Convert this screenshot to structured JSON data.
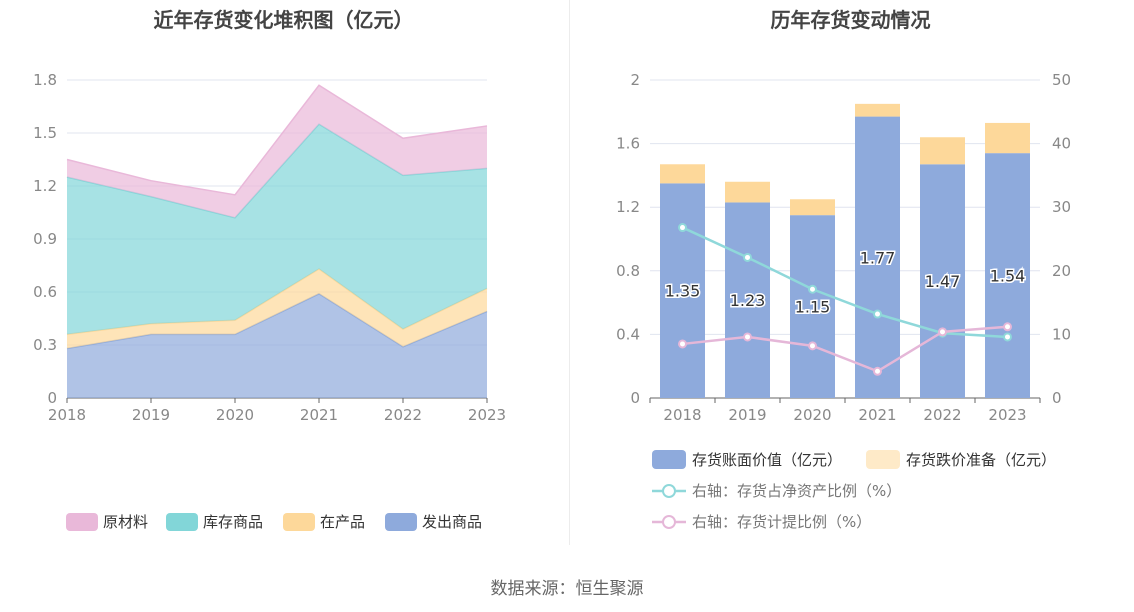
{
  "source": "数据来源：恒生聚源",
  "chart_data": [
    {
      "type": "area",
      "stacked": true,
      "title": "近年存货变化堆积图（亿元）",
      "x": [
        "2018",
        "2019",
        "2020",
        "2021",
        "2022",
        "2023"
      ],
      "ylim": [
        0,
        1.8
      ],
      "yticks": [
        0,
        0.3,
        0.6,
        0.9,
        1.2,
        1.5,
        1.8
      ],
      "ytick_labels": [
        "0",
        "0.3",
        "0.6",
        "0.9",
        "1.2",
        "1.5",
        "1.8"
      ],
      "grid": true,
      "legend_position": "bottom",
      "series": [
        {
          "name": "发出商品",
          "color": "#8eaadc",
          "values": [
            0.28,
            0.36,
            0.36,
            0.59,
            0.29,
            0.49
          ]
        },
        {
          "name": "在产品",
          "color": "#fdd89a",
          "values": [
            0.08,
            0.06,
            0.08,
            0.14,
            0.1,
            0.13
          ]
        },
        {
          "name": "库存商品",
          "color": "#82d6d8",
          "values": [
            0.89,
            0.72,
            0.58,
            0.82,
            0.87,
            0.68
          ]
        },
        {
          "name": "原材料",
          "color": "#e9b8d9",
          "values": [
            0.1,
            0.09,
            0.13,
            0.22,
            0.21,
            0.24
          ]
        }
      ],
      "legend_order": [
        "原材料",
        "库存商品",
        "在产品",
        "发出商品"
      ]
    },
    {
      "type": "bar",
      "stacked": true,
      "title": "历年存货变动情况",
      "x": [
        "2018",
        "2019",
        "2020",
        "2021",
        "2022",
        "2023"
      ],
      "ylim_left": [
        0,
        2
      ],
      "yticks_left": [
        0,
        0.4,
        0.8,
        1.2,
        1.6,
        2
      ],
      "ytick_labels_left": [
        "0",
        "0.4",
        "0.8",
        "1.2",
        "1.6",
        "2"
      ],
      "ylim_right": [
        0,
        50
      ],
      "yticks_right": [
        0,
        10,
        20,
        30,
        40,
        50
      ],
      "ytick_labels_right": [
        "0",
        "10",
        "20",
        "30",
        "40",
        "50"
      ],
      "grid": true,
      "legend_position": "bottom",
      "series": [
        {
          "name": "存货账面价值（亿元）",
          "kind": "bar",
          "axis": "left",
          "color": "#8eaadc",
          "values": [
            1.35,
            1.23,
            1.15,
            1.77,
            1.47,
            1.54
          ],
          "data_labels": [
            "1.35",
            "1.23",
            "1.15",
            "1.77",
            "1.47",
            "1.54"
          ]
        },
        {
          "name": "存货跌价准备（亿元）",
          "kind": "bar",
          "axis": "left",
          "color": "#fdd89a",
          "values": [
            0.12,
            0.13,
            0.1,
            0.08,
            0.17,
            0.19
          ]
        },
        {
          "name": "右轴：存货占净资产比例（%）",
          "kind": "line",
          "axis": "right",
          "color": "#8fd8da",
          "values": [
            26.8,
            22.1,
            17.1,
            13.2,
            10.2,
            9.6
          ]
        },
        {
          "name": "右轴：存货计提比例（%）",
          "kind": "line",
          "axis": "right",
          "color": "#e5b7d8",
          "values": [
            8.5,
            9.6,
            8.2,
            4.2,
            10.4,
            11.2
          ]
        }
      ]
    }
  ]
}
